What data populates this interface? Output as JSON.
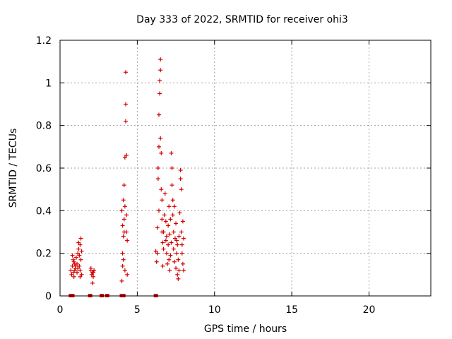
{
  "chart_data": {
    "type": "scatter",
    "title": "Day 333 of 2022, SRMTID for receiver ohi3",
    "xlabel": "GPS time / hours",
    "ylabel": "SRMTID / TECUs",
    "xlim": [
      0,
      24
    ],
    "ylim": [
      0,
      1.2
    ],
    "xticks": [
      0,
      5,
      10,
      15,
      20
    ],
    "xtick_labels": [
      "0",
      "5",
      "10",
      "15",
      "20"
    ],
    "yticks": [
      0,
      0.2,
      0.4,
      0.6,
      0.8,
      1.0,
      1.2
    ],
    "ytick_labels": [
      "0",
      "0.2",
      "0.4",
      "0.6",
      "0.8",
      "1",
      "1.2"
    ],
    "grid": true,
    "marker": "+",
    "color": "#d40000",
    "series": [
      {
        "name": "SRMTID",
        "points": [
          [
            0.7,
            0.12
          ],
          [
            0.75,
            0.1
          ],
          [
            0.8,
            0.14
          ],
          [
            0.85,
            0.11
          ],
          [
            0.9,
            0.16
          ],
          [
            0.95,
            0.12
          ],
          [
            1.0,
            0.13
          ],
          [
            1.05,
            0.18
          ],
          [
            0.8,
            0.19
          ],
          [
            0.9,
            0.09
          ],
          [
            1.1,
            0.15
          ],
          [
            1.15,
            0.2
          ],
          [
            1.2,
            0.22
          ],
          [
            1.2,
            0.25
          ],
          [
            1.25,
            0.14
          ],
          [
            1.3,
            0.12
          ],
          [
            1.3,
            0.24
          ],
          [
            1.35,
            0.27
          ],
          [
            1.4,
            0.21
          ],
          [
            1.4,
            0.1
          ],
          [
            1.1,
            0.11
          ],
          [
            1.25,
            0.19
          ],
          [
            1.35,
            0.17
          ],
          [
            1.0,
            0.14
          ],
          [
            0.95,
            0.15
          ],
          [
            1.15,
            0.13
          ],
          [
            1.3,
            0.09
          ],
          [
            0.85,
            0.17
          ],
          [
            2.0,
            0.12
          ],
          [
            2.05,
            0.1
          ],
          [
            2.1,
            0.11
          ],
          [
            2.15,
            0.09
          ],
          [
            2.2,
            0.12
          ],
          [
            2.1,
            0.06
          ],
          [
            2.0,
            0.13
          ],
          [
            2.15,
            0.11
          ],
          [
            4.0,
            0.4
          ],
          [
            4.05,
            0.33
          ],
          [
            4.05,
            0.2
          ],
          [
            4.1,
            0.45
          ],
          [
            4.1,
            0.28
          ],
          [
            4.1,
            0.17
          ],
          [
            4.15,
            0.3
          ],
          [
            4.15,
            0.52
          ],
          [
            4.2,
            0.65
          ],
          [
            4.2,
            0.42
          ],
          [
            4.2,
            0.12
          ],
          [
            4.25,
            0.9
          ],
          [
            4.25,
            1.05
          ],
          [
            4.25,
            0.82
          ],
          [
            4.3,
            0.66
          ],
          [
            4.3,
            0.3
          ],
          [
            4.3,
            0.38
          ],
          [
            4.35,
            0.26
          ],
          [
            4.35,
            0.1
          ],
          [
            4.0,
            0.07
          ],
          [
            4.05,
            0.14
          ],
          [
            4.15,
            0.36
          ],
          [
            6.2,
            0.21
          ],
          [
            6.25,
            0.16
          ],
          [
            6.3,
            0.2
          ],
          [
            6.3,
            0.32
          ],
          [
            6.35,
            0.55
          ],
          [
            6.35,
            0.6
          ],
          [
            6.4,
            0.7
          ],
          [
            6.4,
            0.85
          ],
          [
            6.45,
            0.95
          ],
          [
            6.45,
            1.01
          ],
          [
            6.5,
            1.06
          ],
          [
            6.5,
            1.11
          ],
          [
            6.5,
            0.74
          ],
          [
            6.55,
            0.67
          ],
          [
            6.55,
            0.5
          ],
          [
            6.6,
            0.45
          ],
          [
            6.6,
            0.3
          ],
          [
            6.65,
            0.25
          ],
          [
            6.65,
            0.14
          ],
          [
            6.7,
            0.22
          ],
          [
            6.75,
            0.38
          ],
          [
            6.8,
            0.48
          ],
          [
            6.85,
            0.35
          ],
          [
            6.9,
            0.28
          ],
          [
            6.9,
            0.2
          ],
          [
            6.95,
            0.15
          ],
          [
            7.0,
            0.24
          ],
          [
            7.0,
            0.33
          ],
          [
            7.05,
            0.42
          ],
          [
            7.1,
            0.29
          ],
          [
            7.1,
            0.12
          ],
          [
            7.15,
            0.19
          ],
          [
            7.2,
            0.25
          ],
          [
            7.2,
            0.67
          ],
          [
            7.25,
            0.6
          ],
          [
            7.25,
            0.52
          ],
          [
            7.3,
            0.45
          ],
          [
            7.3,
            0.38
          ],
          [
            7.35,
            0.3
          ],
          [
            7.35,
            0.22
          ],
          [
            7.4,
            0.16
          ],
          [
            7.45,
            0.27
          ],
          [
            7.5,
            0.13
          ],
          [
            7.5,
            0.34
          ],
          [
            7.55,
            0.2
          ],
          [
            7.6,
            0.1
          ],
          [
            7.6,
            0.24
          ],
          [
            7.65,
            0.08
          ],
          [
            7.65,
            0.17
          ],
          [
            7.7,
            0.28
          ],
          [
            7.7,
            0.12
          ],
          [
            7.75,
            0.39
          ],
          [
            7.8,
            0.55
          ],
          [
            7.8,
            0.59
          ],
          [
            7.85,
            0.5
          ],
          [
            7.85,
            0.3
          ],
          [
            7.9,
            0.24
          ],
          [
            7.9,
            0.2
          ],
          [
            7.95,
            0.35
          ],
          [
            8.0,
            0.27
          ],
          [
            8.0,
            0.12
          ],
          [
            7.95,
            0.15
          ],
          [
            6.85,
            0.26
          ],
          [
            7.05,
            0.17
          ],
          [
            6.4,
            0.4
          ],
          [
            6.6,
            0.36
          ],
          [
            7.4,
            0.42
          ],
          [
            6.7,
            0.3
          ],
          [
            7.15,
            0.36
          ],
          [
            7.55,
            0.26
          ]
        ]
      }
    ],
    "zero_markers_x": [
      0.7,
      0.8,
      1.95,
      2.7,
      3.05,
      4.0,
      4.1,
      6.2
    ]
  }
}
